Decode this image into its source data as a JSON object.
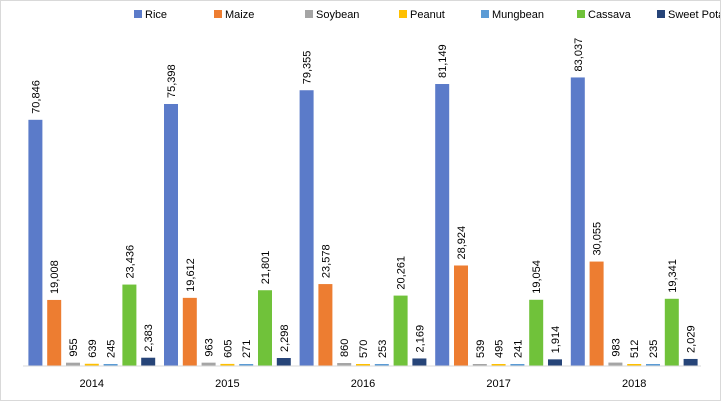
{
  "chart_data": {
    "type": "bar",
    "title": "",
    "xlabel": "",
    "ylabel": "",
    "categories": [
      "2014",
      "2015",
      "2016",
      "2017",
      "2018"
    ],
    "series": [
      {
        "name": "Rice",
        "color": "#5B7BC9",
        "values": [
          70846,
          75398,
          79355,
          81149,
          83037
        ],
        "labels": [
          "70,846",
          "75,398",
          "79,355",
          "81,149",
          "83,037"
        ]
      },
      {
        "name": "Maize",
        "color": "#ED7D31",
        "values": [
          19008,
          19612,
          23578,
          28924,
          30055
        ],
        "labels": [
          "19,008",
          "19,612",
          "23,578",
          "28,924",
          "30,055"
        ]
      },
      {
        "name": "Soybean",
        "color": "#A5A5A5",
        "values": [
          955,
          963,
          860,
          539,
          983
        ],
        "labels": [
          "955",
          "963",
          "860",
          "539",
          "983"
        ]
      },
      {
        "name": "Peanut",
        "color": "#FFC000",
        "values": [
          639,
          605,
          570,
          495,
          512
        ],
        "labels": [
          "639",
          "605",
          "570",
          "495",
          "512"
        ]
      },
      {
        "name": "Mungbean",
        "color": "#5B9BD5",
        "values": [
          245,
          271,
          253,
          241,
          235
        ],
        "labels": [
          "245",
          "271",
          "253",
          "241",
          "235"
        ]
      },
      {
        "name": "Cassava",
        "color": "#70C23A",
        "values": [
          23436,
          21801,
          20261,
          19054,
          19341
        ],
        "labels": [
          "23,436",
          "21,801",
          "20,261",
          "19,054",
          "19,341"
        ]
      },
      {
        "name": "Sweet Potato",
        "color": "#264478",
        "values": [
          2383,
          2298,
          2169,
          1914,
          2029
        ],
        "labels": [
          "2,383",
          "2,298",
          "2,169",
          "1,914",
          "2,029"
        ]
      }
    ],
    "ylim": [
      0,
      87000
    ],
    "grid": false,
    "legend_position": "top"
  }
}
